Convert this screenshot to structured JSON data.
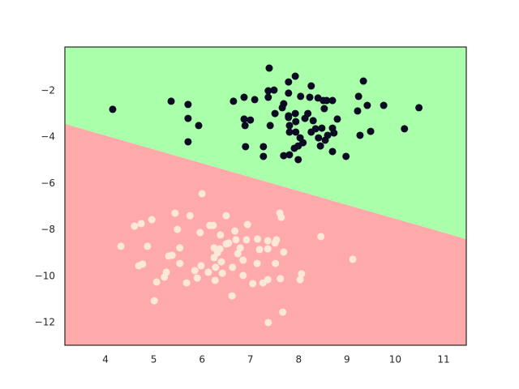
{
  "chart_data": {
    "type": "scatter",
    "xlim": [
      3.16,
      11.47
    ],
    "ylim": [
      -12.98,
      -0.11
    ],
    "xticks": [
      4,
      5,
      6,
      7,
      8,
      9,
      10,
      11
    ],
    "yticks": [
      {
        "value": -2,
        "label": "−2"
      },
      {
        "value": -4,
        "label": "−4"
      },
      {
        "value": -6,
        "label": "−6"
      },
      {
        "value": -8,
        "label": "−8"
      },
      {
        "value": -10,
        "label": "−10"
      },
      {
        "value": -12,
        "label": "−12"
      }
    ],
    "boundary": {
      "x": [
        3.16,
        11.47
      ],
      "y": [
        -3.43,
        -8.4
      ]
    },
    "region_colors": [
      "#aaffaa",
      "#ffaaaa"
    ],
    "series": [
      {
        "color": "#0b0b23",
        "x": [
          4.15,
          5.36,
          5.71,
          5.71,
          5.93,
          5.71,
          6.65,
          6.87,
          7.09,
          6.87,
          6.89,
          7.0,
          6.9,
          7.27,
          7.27,
          7.39,
          7.37,
          7.37,
          7.49,
          7.41,
          7.51,
          7.66,
          7.69,
          7.79,
          7.79,
          7.79,
          7.81,
          7.81,
          7.79,
          7.69,
          7.81,
          7.93,
          7.93,
          7.94,
          7.94,
          8.04,
          7.99,
          7.99,
          8.13,
          8.09,
          8.23,
          8.26,
          8.3,
          8.35,
          8.4,
          8.41,
          8.51,
          8.48,
          8.53,
          8.55,
          8.58,
          8.6,
          8.7,
          8.7,
          8.8,
          8.7,
          8.73,
          8.98,
          9.24,
          9.22,
          9.34,
          9.42,
          9.27,
          9.49,
          9.76,
          10.19,
          10.49,
          8.26,
          7.91,
          8.03,
          8.19,
          8.45
        ],
        "values": [
          -2.8,
          -2.45,
          -2.59,
          -3.19,
          -3.5,
          -4.2,
          -2.45,
          -2.28,
          -2.38,
          -3.22,
          -3.5,
          -3.26,
          -4.41,
          -4.41,
          -4.83,
          -1.02,
          -2.0,
          -2.28,
          -1.97,
          -3.5,
          -2.98,
          -2.73,
          -2.56,
          -1.62,
          -2.1,
          -3.08,
          -3.5,
          -3.78,
          -3.15,
          -4.8,
          -4.76,
          -1.37,
          -2.98,
          -3.33,
          -3.78,
          -2.24,
          -4.38,
          -4.97,
          -3.19,
          -4.24,
          -2.28,
          -3.78,
          -3.29,
          -3.64,
          -2.31,
          -4.03,
          -2.42,
          -3.61,
          -2.77,
          -4.13,
          -2.42,
          -3.92,
          -4.62,
          -2.42,
          -3.22,
          -3.61,
          -3.82,
          -4.83,
          -2.24,
          -2.87,
          -1.58,
          -2.63,
          -3.92,
          -3.75,
          -2.63,
          -3.64,
          -2.73,
          -1.79,
          -4.48,
          -4.03,
          -2.98,
          -4.38
        ]
      },
      {
        "color": "#fbe8d6",
        "x": [
          4.32,
          4.6,
          4.74,
          4.96,
          4.87,
          4.69,
          4.77,
          5.06,
          5.01,
          5.22,
          5.26,
          5.38,
          5.44,
          5.49,
          5.54,
          5.54,
          5.68,
          5.75,
          6.0,
          5.96,
          5.98,
          5.9,
          6.16,
          6.23,
          6.25,
          6.25,
          6.28,
          6.27,
          6.38,
          6.37,
          6.4,
          6.42,
          6.5,
          6.55,
          6.63,
          6.62,
          6.68,
          6.7,
          6.79,
          6.74,
          6.85,
          6.92,
          6.94,
          7.15,
          7.14,
          7.19,
          7.05,
          7.26,
          7.36,
          7.36,
          7.37,
          7.36,
          7.51,
          7.54,
          7.52,
          7.61,
          7.64,
          7.62,
          7.67,
          7.69,
          8.06,
          8.03,
          8.46,
          9.12,
          5.31,
          5.85,
          6.5,
          6.13,
          6.32,
          6.85
        ],
        "values": [
          -8.71,
          -7.84,
          -7.73,
          -7.56,
          -8.71,
          -9.55,
          -9.48,
          -10.25,
          -11.06,
          -10.04,
          -9.83,
          -9.1,
          -7.28,
          -7.98,
          -8.78,
          -9.45,
          -10.29,
          -7.39,
          -6.44,
          -8.12,
          -9.55,
          -10.08,
          -7.81,
          -7.81,
          -8.78,
          -9.2,
          -9.62,
          -10.18,
          -8.22,
          -8.82,
          -9.38,
          -9.87,
          -7.39,
          -8.57,
          -9.62,
          -10.85,
          -8.05,
          -8.43,
          -8.78,
          -9.03,
          -9.31,
          -8.43,
          -7.77,
          -8.4,
          -9.45,
          -8.85,
          -10.32,
          -10.29,
          -10.15,
          -8.82,
          -12.0,
          -8.47,
          -8.57,
          -8.43,
          -9.45,
          -7.28,
          -7.46,
          -10.11,
          -11.55,
          -8.96,
          -9.9,
          -10.15,
          -8.29,
          -9.27,
          -9.13,
          -9.76,
          -8.61,
          -9.83,
          -8.99,
          -9.97
        ]
      }
    ]
  }
}
